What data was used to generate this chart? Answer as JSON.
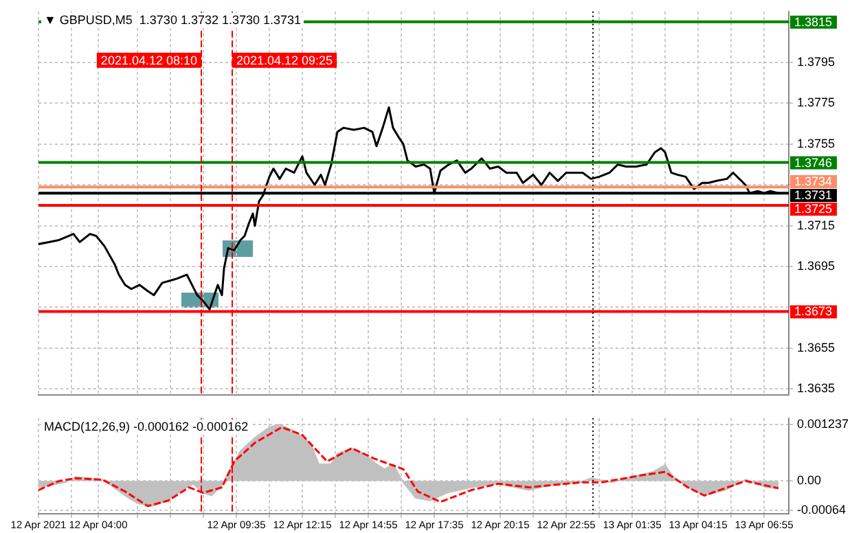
{
  "chart_data": [
    {
      "type": "line",
      "title": "▼ GBPUSD,M5  1.3730 1.3732 1.3730 1.3731",
      "color": "#000000",
      "x": [
        "2021-04-12T01:35",
        "2021-04-12T02:00",
        "2021-04-12T02:25",
        "2021-04-12T03:00",
        "2021-04-12T03:15",
        "2021-04-12T03:40",
        "2021-04-12T03:55",
        "2021-04-12T04:15",
        "2021-04-12T04:40",
        "2021-04-12T04:50",
        "2021-04-12T05:05",
        "2021-04-12T05:20",
        "2021-04-12T05:40",
        "2021-04-12T06:00",
        "2021-04-12T06:15",
        "2021-04-12T06:35",
        "2021-04-12T07:10",
        "2021-04-12T07:35",
        "2021-04-12T07:45",
        "2021-04-12T08:00",
        "2021-04-12T08:15",
        "2021-04-12T08:30",
        "2021-04-12T08:40",
        "2021-04-12T08:50",
        "2021-04-12T09:00",
        "2021-04-12T09:05",
        "2021-04-12T09:15",
        "2021-04-12T09:30",
        "2021-04-12T09:45",
        "2021-04-12T09:55",
        "2021-04-12T10:05",
        "2021-04-12T10:15",
        "2021-04-12T10:20",
        "2021-04-12T10:30",
        "2021-04-12T10:40",
        "2021-04-12T10:55",
        "2021-04-12T11:05",
        "2021-04-12T11:20",
        "2021-04-12T11:35",
        "2021-04-12T11:55",
        "2021-04-12T12:15",
        "2021-04-12T12:25",
        "2021-04-12T12:45",
        "2021-04-12T13:00",
        "2021-04-12T13:10",
        "2021-04-12T13:25",
        "2021-04-12T13:40",
        "2021-04-12T13:55",
        "2021-04-12T14:20",
        "2021-04-12T14:45",
        "2021-04-12T15:05",
        "2021-04-12T15:15",
        "2021-04-12T15:30",
        "2021-04-12T15:45",
        "2021-04-12T15:55",
        "2021-04-12T16:10",
        "2021-04-12T16:20",
        "2021-04-12T16:30",
        "2021-04-12T16:50",
        "2021-04-12T17:10",
        "2021-04-12T17:25",
        "2021-04-12T17:35",
        "2021-04-12T17:50",
        "2021-04-12T18:10",
        "2021-04-12T18:30",
        "2021-04-12T18:50",
        "2021-04-12T19:05",
        "2021-04-12T19:30",
        "2021-04-12T19:50",
        "2021-04-12T20:10",
        "2021-04-12T20:30",
        "2021-04-12T20:55",
        "2021-04-12T21:10",
        "2021-04-12T21:35",
        "2021-04-12T21:55",
        "2021-04-12T22:15",
        "2021-04-12T22:35",
        "2021-04-12T22:55",
        "2021-04-12T23:15",
        "2021-04-12T23:35",
        "2021-04-12T23:55",
        "2021-04-13T00:15",
        "2021-04-13T00:40",
        "2021-04-13T01:00",
        "2021-04-13T01:20",
        "2021-04-13T01:45",
        "2021-04-13T02:10",
        "2021-04-13T02:30",
        "2021-04-13T02:45",
        "2021-04-13T02:55",
        "2021-04-13T03:10",
        "2021-04-13T03:25",
        "2021-04-13T03:45",
        "2021-04-13T04:05",
        "2021-04-13T04:25",
        "2021-04-13T04:40",
        "2021-04-13T05:00",
        "2021-04-13T05:25",
        "2021-04-13T05:40",
        "2021-04-13T05:55",
        "2021-04-13T06:10",
        "2021-04-13T06:20",
        "2021-04-13T06:40",
        "2021-04-13T06:55",
        "2021-04-13T07:10",
        "2021-04-13T07:30"
      ],
      "values": [
        1.3706,
        1.3707,
        1.3708,
        1.3711,
        1.3707,
        1.3711,
        1.371,
        1.3705,
        1.3696,
        1.3691,
        1.3686,
        1.3684,
        1.3686,
        1.3683,
        1.3681,
        1.3687,
        1.3689,
        1.3691,
        1.3687,
        1.3681,
        1.3678,
        1.3674,
        1.368,
        1.3686,
        1.3681,
        1.3694,
        1.3704,
        1.3703,
        1.3708,
        1.371,
        1.3716,
        1.3721,
        1.3715,
        1.3727,
        1.373,
        1.3739,
        1.3743,
        1.3738,
        1.3743,
        1.3741,
        1.3749,
        1.3741,
        1.3735,
        1.374,
        1.3735,
        1.3745,
        1.3761,
        1.3763,
        1.3762,
        1.3763,
        1.3761,
        1.3754,
        1.3763,
        1.3773,
        1.3763,
        1.3758,
        1.3755,
        1.3747,
        1.3744,
        1.3745,
        1.3743,
        1.3731,
        1.3742,
        1.3745,
        1.3747,
        1.3741,
        1.3743,
        1.3748,
        1.3743,
        1.3744,
        1.3741,
        1.3741,
        1.3736,
        1.374,
        1.3735,
        1.3741,
        1.3737,
        1.3741,
        1.3741,
        1.3741,
        1.3738,
        1.3739,
        1.3741,
        1.3745,
        1.3744,
        1.3744,
        1.3745,
        1.3751,
        1.3753,
        1.3751,
        1.3741,
        1.374,
        1.3739,
        1.3733,
        1.3736,
        1.3736,
        1.3737,
        1.3738,
        1.3741,
        1.3738,
        1.3735,
        1.3731,
        1.3732,
        1.3731,
        1.3732,
        1.3731
      ],
      "xlim": [
        "2021-04-12T01:35",
        "2021-04-13T07:55"
      ],
      "xticks": [
        {
          "value": "2021-04-12T01:35",
          "label": null
        },
        {
          "value": "2021-04-12T02:55",
          "label": null
        },
        {
          "value": "2021-04-12T04:00",
          "label": null
        },
        {
          "value": "2021-04-12T05:35",
          "label": null
        },
        {
          "value": "2021-04-12T06:55",
          "label": null
        },
        {
          "value": "2021-04-12T08:15",
          "label": null
        },
        {
          "value": "2021-04-12T09:35",
          "label": null
        },
        {
          "value": "2021-04-12T10:55",
          "label": null
        },
        {
          "value": "2021-04-12T12:15",
          "label": null
        },
        {
          "value": "2021-04-12T13:35",
          "label": null
        },
        {
          "value": "2021-04-12T14:55",
          "label": null
        },
        {
          "value": "2021-04-12T16:15",
          "label": null
        },
        {
          "value": "2021-04-12T17:35",
          "label": null
        },
        {
          "value": "2021-04-12T18:55",
          "label": null
        },
        {
          "value": "2021-04-12T20:15",
          "label": null
        },
        {
          "value": "2021-04-12T21:35",
          "label": null
        },
        {
          "value": "2021-04-12T22:55",
          "label": null
        },
        {
          "value": "2021-04-13T00:15",
          "label": null
        },
        {
          "value": "2021-04-13T01:35",
          "label": null
        },
        {
          "value": "2021-04-13T02:55",
          "label": null
        },
        {
          "value": "2021-04-13T04:15",
          "label": null
        },
        {
          "value": "2021-04-13T05:35",
          "label": null
        },
        {
          "value": "2021-04-13T06:55",
          "label": null
        }
      ],
      "ylim": [
        1.3632,
        1.382
      ],
      "yticks": [
        1.3635,
        1.3655,
        {
          "value": 1.3675,
          "label": null
        },
        1.3695,
        1.3715,
        {
          "value": 1.3735,
          "label": null
        },
        1.3755,
        1.3775,
        1.3795,
        {
          "value": 1.3815,
          "label": null
        }
      ],
      "ref_lines": [
        {
          "axis": "y",
          "value": 1.3815,
          "label": "1.3815",
          "color": "#008000"
        },
        {
          "axis": "y",
          "value": 1.3746,
          "label": "1.3746",
          "color": "#008000"
        },
        {
          "axis": "y",
          "value": 1.3734,
          "label": "1.3734",
          "color": "#ff8c69"
        },
        {
          "axis": "y",
          "value": 1.3731,
          "label": "1.3731",
          "color": "#000000"
        },
        {
          "axis": "y",
          "value": 1.3725,
          "label": "1.3725",
          "color": "#ff0000"
        },
        {
          "axis": "y",
          "value": 1.3673,
          "label": "1.3673",
          "color": "#ff0000"
        },
        {
          "axis": "x",
          "value": "2021-04-12T08:10",
          "label": "2021.04.12 08:10",
          "color": "#ff0000",
          "line_style": "dashed"
        },
        {
          "axis": "x",
          "value": "2021-04-12T09:25",
          "label": "2021.04.12 09:25",
          "color": "#ff0000",
          "line_style": "dashed"
        },
        {
          "axis": "x",
          "value": "2021-04-13T00:00",
          "color": "#000000",
          "line_style": "dotted"
        }
      ],
      "grid": true,
      "legend": false,
      "tick_labels": "y"
    },
    {
      "type": "area",
      "title": "MACD(12,26,9) -0.000162 -0.000162",
      "series": [
        {
          "type": "area",
          "color": "#c0c0c0",
          "x": [
            "2021-04-12T01:35",
            "2021-04-12T02:40",
            "2021-04-12T03:05",
            "2021-04-12T04:10",
            "2021-04-12T04:30",
            "2021-04-12T05:05",
            "2021-04-12T05:35",
            "2021-04-12T06:10",
            "2021-04-12T06:50",
            "2021-04-12T07:25",
            "2021-04-12T07:50",
            "2021-04-12T08:15",
            "2021-04-12T08:35",
            "2021-04-12T09:00",
            "2021-04-12T09:20",
            "2021-04-12T09:45",
            "2021-04-12T10:20",
            "2021-04-12T10:55",
            "2021-04-12T11:20",
            "2021-04-12T11:50",
            "2021-04-12T12:20",
            "2021-04-12T12:40",
            "2021-04-12T12:55",
            "2021-04-12T13:25",
            "2021-04-12T13:40",
            "2021-04-12T14:15",
            "2021-04-12T14:45",
            "2021-04-12T15:15",
            "2021-04-12T15:35",
            "2021-04-12T15:55",
            "2021-04-12T16:20",
            "2021-04-12T16:50",
            "2021-04-12T17:25",
            "2021-04-12T18:05",
            "2021-04-12T19:05",
            "2021-04-12T20:10",
            "2021-04-12T21:25",
            "2021-04-12T22:15",
            "2021-04-12T23:30",
            "2021-04-12T23:55",
            "2021-04-13T00:45",
            "2021-04-13T01:35",
            "2021-04-13T02:25",
            "2021-04-13T02:55",
            "2021-04-13T03:15",
            "2021-04-13T03:50",
            "2021-04-13T04:30",
            "2021-04-13T05:20",
            "2021-04-13T06:10",
            "2021-04-13T07:00",
            "2021-04-13T07:30"
          ],
          "values": [
            -0.00014,
            -3e-05,
            9e-05,
            3e-05,
            -9e-05,
            -0.00032,
            -0.00049,
            -0.00055,
            -0.00043,
            -0.0002,
            -6e-05,
            -0.00026,
            -0.00032,
            -9e-05,
            0.00026,
            0.00066,
            0.00095,
            0.00118,
            0.00124,
            0.00112,
            0.00095,
            0.00072,
            0.00037,
            0.00037,
            0.0006,
            0.00072,
            0.0006,
            0.00037,
            0.00026,
            0.00037,
            -3e-05,
            -0.00037,
            -0.00043,
            -0.00026,
            -0.00014,
            -6e-05,
            -0.0002,
            -9e-05,
            -3e-05,
            6e-05,
            -3e-05,
            9e-05,
            0.0002,
            0.00035,
            9e-05,
            -0.00014,
            -0.00032,
            -0.0002,
            3e-05,
            -0.00014,
            -0.00016
          ]
        },
        {
          "type": "line",
          "color": "#ff0000",
          "line_style": "dashed",
          "x": [
            "2021-04-12T01:35",
            "2021-04-12T02:25",
            "2021-04-12T03:05",
            "2021-04-12T04:10",
            "2021-04-12T05:05",
            "2021-04-12T06:00",
            "2021-04-12T06:50",
            "2021-04-12T07:40",
            "2021-04-12T08:15",
            "2021-04-12T09:00",
            "2021-04-12T09:30",
            "2021-04-12T10:20",
            "2021-04-12T11:25",
            "2021-04-12T12:15",
            "2021-04-12T13:15",
            "2021-04-12T14:15",
            "2021-04-12T15:10",
            "2021-04-12T16:20",
            "2021-04-12T16:55",
            "2021-04-12T17:50",
            "2021-04-12T19:05",
            "2021-04-12T20:10",
            "2021-04-12T21:25",
            "2021-04-12T23:30",
            "2021-04-13T00:20",
            "2021-04-13T01:55",
            "2021-04-13T02:55",
            "2021-04-13T03:50",
            "2021-04-13T04:30",
            "2021-04-13T06:10",
            "2021-04-13T07:30"
          ],
          "values": [
            -0.0002,
            0,
            6e-05,
            3e-05,
            -0.00023,
            -0.00055,
            -0.00043,
            -0.00014,
            -0.00026,
            -0.00014,
            0.00043,
            0.00084,
            0.00118,
            0.00101,
            0.00043,
            0.00072,
            0.00049,
            0.00026,
            -0.00023,
            -0.00046,
            -0.0002,
            -6e-05,
            -0.00014,
            -3e-05,
            -3e-05,
            0.00012,
            0.0002,
            -0.00014,
            -0.00032,
            0,
            -0.00016
          ]
        }
      ],
      "xlim": [
        "2021-04-12T01:35",
        "2021-04-13T07:55"
      ],
      "xticks": [
        {
          "value": "2021-04-12T01:35",
          "label": "12 Apr 2021"
        },
        {
          "value": "2021-04-12T02:55",
          "label": null
        },
        {
          "value": "2021-04-12T04:00",
          "label": "12 Apr 04:00"
        },
        {
          "value": "2021-04-12T05:35",
          "label": null
        },
        {
          "value": "2021-04-12T06:55",
          "label": null
        },
        {
          "value": "2021-04-12T08:15",
          "label": null
        },
        {
          "value": "2021-04-12T09:35",
          "label": "12 Apr 09:35"
        },
        {
          "value": "2021-04-12T10:55",
          "label": null
        },
        {
          "value": "2021-04-12T12:15",
          "label": "12 Apr 12:15"
        },
        {
          "value": "2021-04-12T13:35",
          "label": null
        },
        {
          "value": "2021-04-12T14:55",
          "label": "12 Apr 14:55"
        },
        {
          "value": "2021-04-12T16:15",
          "label": null
        },
        {
          "value": "2021-04-12T17:35",
          "label": "12 Apr 17:35"
        },
        {
          "value": "2021-04-12T18:55",
          "label": null
        },
        {
          "value": "2021-04-12T20:15",
          "label": "12 Apr 20:15"
        },
        {
          "value": "2021-04-12T21:35",
          "label": null
        },
        {
          "value": "2021-04-12T22:55",
          "label": "12 Apr 22:55"
        },
        {
          "value": "2021-04-13T00:15",
          "label": null
        },
        {
          "value": "2021-04-13T01:35",
          "label": "13 Apr 01:35"
        },
        {
          "value": "2021-04-13T02:55",
          "label": null
        },
        {
          "value": "2021-04-13T04:15",
          "label": "13 Apr 04:15"
        },
        {
          "value": "2021-04-13T05:35",
          "label": null
        },
        {
          "value": "2021-04-13T06:55",
          "label": "13 Apr 06:55"
        }
      ],
      "ylim": [
        -0.00072,
        0.00138
      ],
      "yticks": [
        -0.00064,
        {
          "value": 0,
          "label": "0.00"
        },
        0.001237
      ],
      "ref_lines": [
        {
          "axis": "x",
          "value": "2021-04-12T08:10",
          "color": "#ff0000",
          "line_style": "dashed"
        },
        {
          "axis": "x",
          "value": "2021-04-12T09:25",
          "color": "#ff0000",
          "line_style": "dashed"
        },
        {
          "axis": "x",
          "value": "2021-04-13T00:00",
          "color": "#000000",
          "line_style": "dotted"
        }
      ],
      "grid": true,
      "legend": false
    }
  ]
}
